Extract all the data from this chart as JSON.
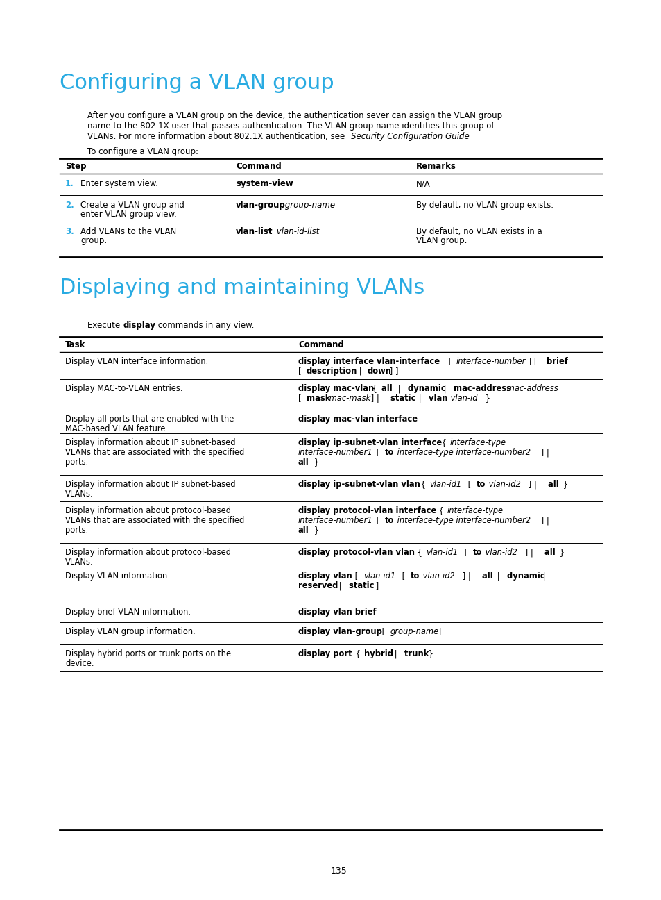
{
  "page_bg": "#ffffff",
  "title1": "Configuring a VLAN group",
  "title1_color": "#29abe2",
  "title2": "Displaying and maintaining VLANs",
  "title2_color": "#29abe2",
  "page_number": "135"
}
